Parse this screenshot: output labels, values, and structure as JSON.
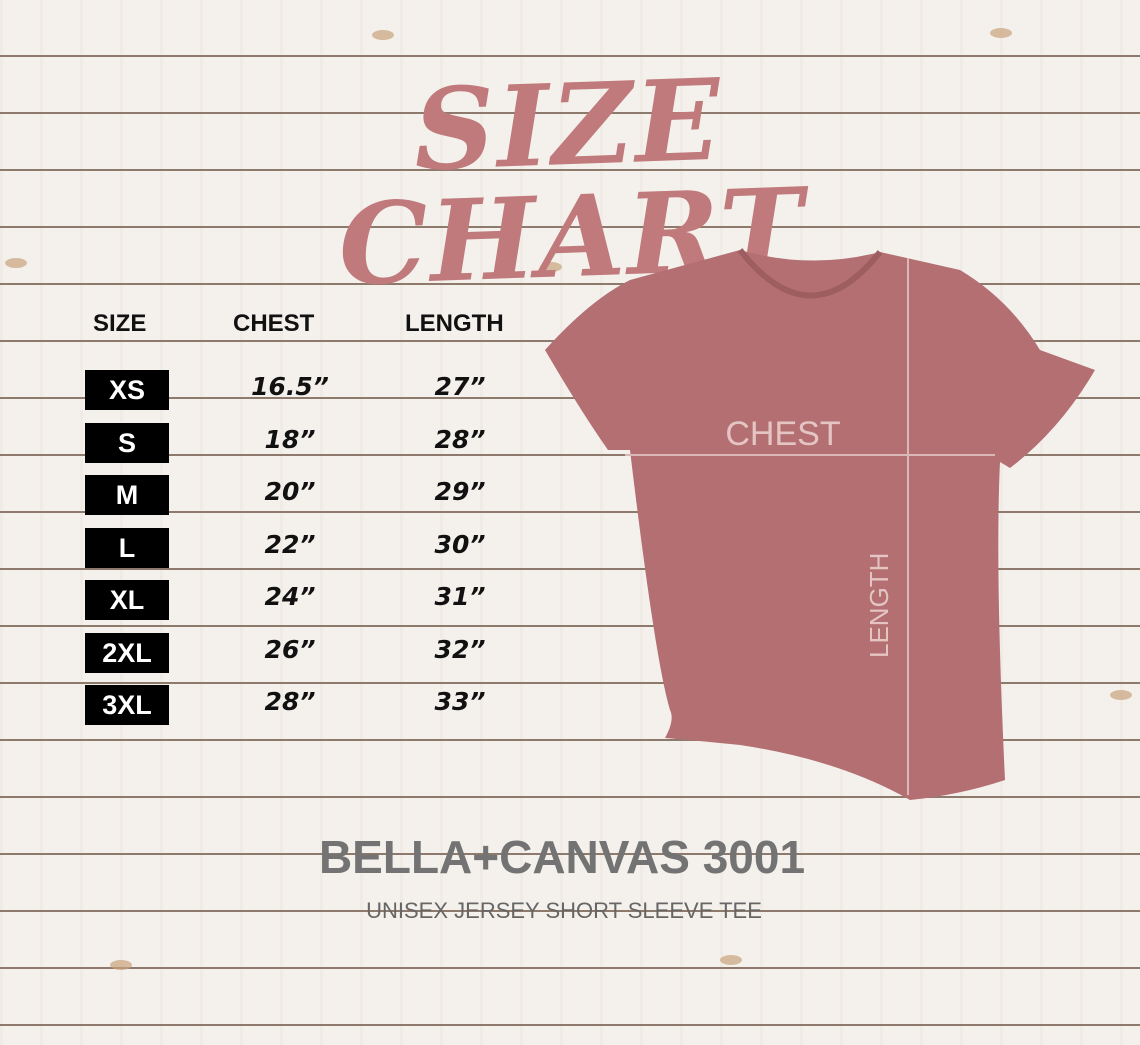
{
  "title": "SIZE CHART",
  "table": {
    "headers": [
      "SIZE",
      "CHEST",
      "LENGTH"
    ],
    "rows": [
      {
        "size": "XS",
        "chest": "16.5”",
        "length": "27”"
      },
      {
        "size": "S",
        "chest": "18”",
        "length": "28”"
      },
      {
        "size": "M",
        "chest": "20”",
        "length": "29”"
      },
      {
        "size": "L",
        "chest": "22”",
        "length": "30”"
      },
      {
        "size": "XL",
        "chest": "24”",
        "length": "31”"
      },
      {
        "size": "2XL",
        "chest": "26”",
        "length": "32”"
      },
      {
        "size": "3XL",
        "chest": "28”",
        "length": "33”"
      }
    ]
  },
  "diagram": {
    "chest_label": "CHEST",
    "length_label": "LENGTH",
    "shirt_color": "#b36f72"
  },
  "brand": "BELLA+CANVAS 3001",
  "subtitle": "UNISEX JERSEY SHORT SLEEVE TEE",
  "colors": {
    "title": "#c07a7c",
    "badge": "#000000",
    "brand": "#737373"
  }
}
